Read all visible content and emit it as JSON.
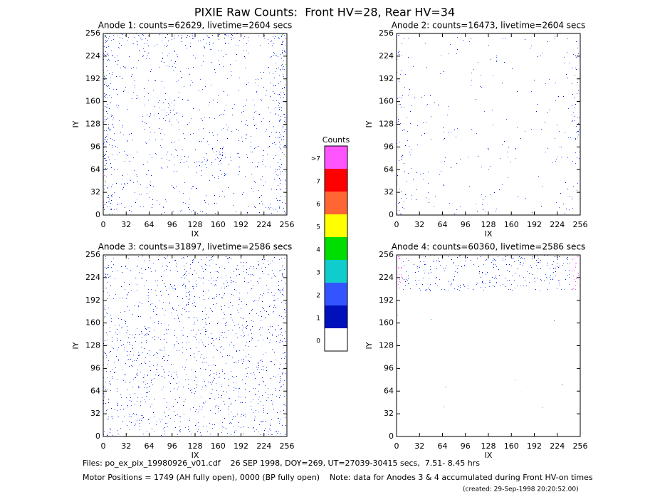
{
  "title": "PIXIE Raw Counts:  Front HV=28, Rear HV=34",
  "chart_data": [
    {
      "type": "image",
      "title": "Anode 1: counts=62629, livetime=2604 secs",
      "x_label": "IX",
      "y_label": "IY",
      "xlim": [
        0,
        256
      ],
      "ylim": [
        0,
        256
      ],
      "xticks": [
        0,
        32,
        64,
        96,
        128,
        160,
        192,
        224,
        256
      ],
      "yticks": [
        0,
        32,
        64,
        96,
        128,
        160,
        192,
        224,
        256
      ]
    },
    {
      "type": "image",
      "title": "Anode 2: counts=16473, livetime=2604 secs",
      "x_label": "IX",
      "y_label": "IY",
      "xlim": [
        0,
        256
      ],
      "ylim": [
        0,
        256
      ],
      "xticks": [
        0,
        32,
        64,
        96,
        128,
        160,
        192,
        224,
        256
      ],
      "yticks": [
        0,
        32,
        64,
        96,
        128,
        160,
        192,
        224,
        256
      ]
    },
    {
      "type": "image",
      "title": "Anode 3: counts=31897, livetime=2586 secs",
      "x_label": "IX",
      "y_label": "IY",
      "xlim": [
        0,
        256
      ],
      "ylim": [
        0,
        256
      ],
      "xticks": [
        0,
        32,
        64,
        96,
        128,
        160,
        192,
        224,
        256
      ],
      "yticks": [
        0,
        32,
        64,
        96,
        128,
        160,
        192,
        224,
        256
      ]
    },
    {
      "type": "image",
      "title": "Anode 4: counts=60360, livetime=2586 secs",
      "x_label": "IX",
      "y_label": "IY",
      "xlim": [
        0,
        256
      ],
      "ylim": [
        0,
        256
      ],
      "xticks": [
        0,
        32,
        64,
        96,
        128,
        160,
        192,
        224,
        256
      ],
      "yticks": [
        0,
        32,
        64,
        96,
        128,
        160,
        192,
        224,
        256
      ]
    }
  ],
  "colorbar": {
    "title": "Counts",
    "labels": [
      ">7",
      "7",
      "6",
      "5",
      "4",
      "3",
      "2",
      "1",
      "0"
    ],
    "colors": [
      "#ff55ff",
      "#ff0000",
      "#ff6633",
      "#ffff00",
      "#00dd00",
      "#11cccc",
      "#3355ff",
      "#0011bb",
      "#ffffff"
    ]
  },
  "footer": {
    "files": "Files: po_ex_pix_19980926_v01.cdf    26 SEP 1998, DOY=269, UT=27039-30415 secs,  7.51- 8.45 hrs",
    "motor": "Motor Positions = 1749 (AH fully open), 0000 (BP fully open)    Note: data for Anodes 3 & 4 accumulated during Front HV-on times",
    "created": "(created: 29-Sep-1998 20:20:52.00)"
  }
}
